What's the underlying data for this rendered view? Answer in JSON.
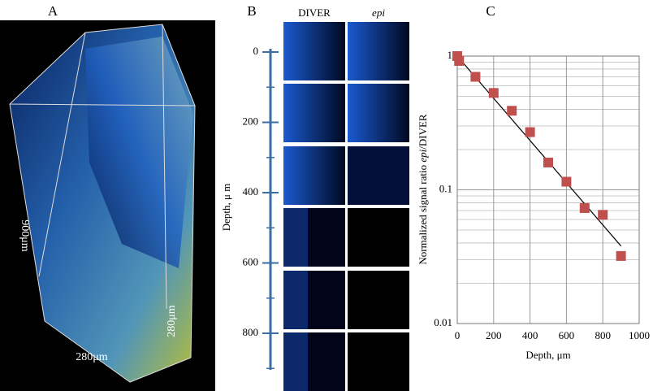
{
  "panels": {
    "a": "A",
    "b": "B",
    "c": "C"
  },
  "panel_a": {
    "height_label": "900μm",
    "width_label": "280μm",
    "depth_label": "280μm"
  },
  "panel_b": {
    "col1": "DIVER",
    "col2": "epi",
    "ylabel": "Depth, μ m",
    "ylim": [
      0,
      800
    ],
    "yticks": [
      0,
      200,
      400,
      600,
      800
    ],
    "minor_ticks": [
      100,
      300,
      500,
      700,
      900
    ]
  },
  "chart_data": {
    "type": "scatter",
    "ylabel_parts": [
      "Normalized signal ratio ",
      "epi",
      "/DIVER"
    ],
    "xlabel": "Depth, μm",
    "x": [
      0,
      10,
      100,
      200,
      300,
      400,
      500,
      600,
      700,
      800,
      900
    ],
    "values": [
      1.0,
      0.92,
      0.7,
      0.53,
      0.39,
      0.27,
      0.16,
      0.115,
      0.073,
      0.065,
      0.032
    ],
    "color": "#c0504d",
    "fit": {
      "x": [
        0,
        900
      ],
      "values": [
        1.0,
        0.038
      ]
    },
    "xlim": [
      0,
      1000
    ],
    "xticks": [
      0,
      200,
      400,
      600,
      800,
      1000
    ],
    "ylim": [
      0.01,
      1
    ],
    "yticks": [
      0.01,
      0.1,
      1
    ],
    "log_y": true,
    "grid": true,
    "y_minor_grid": [
      0.02,
      0.03,
      0.04,
      0.05,
      0.06,
      0.07,
      0.08,
      0.09,
      0.2,
      0.3,
      0.4,
      0.5,
      0.6,
      0.7,
      0.8,
      0.9
    ]
  }
}
